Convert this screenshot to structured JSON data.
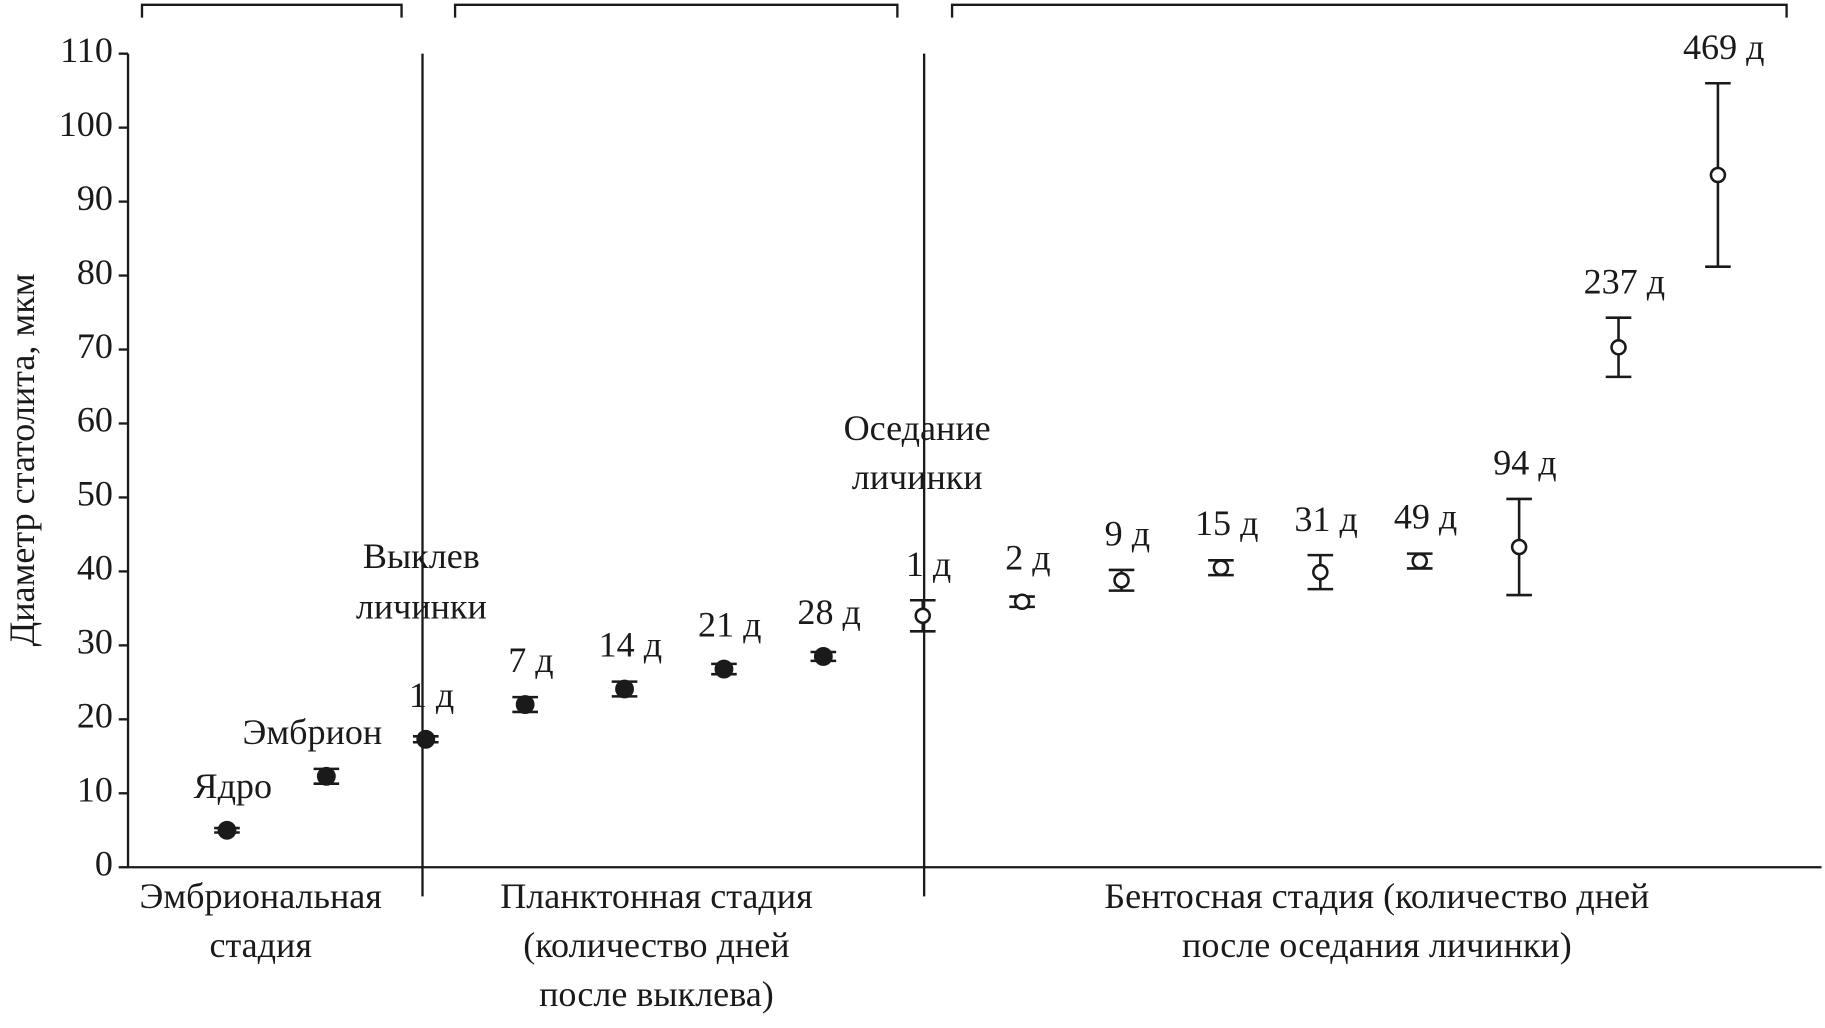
{
  "chart_data": {
    "type": "errorbar",
    "y_label": "Диаметр статолита, мкм",
    "ylim": [
      0,
      110
    ],
    "yticks": [
      0,
      10,
      20,
      30,
      40,
      50,
      60,
      70,
      80,
      90,
      100,
      110
    ],
    "categories": [
      "Ядро",
      "Эмбрион",
      "1 д",
      "7 д",
      "14 д",
      "21 д",
      "28 д",
      "1 д",
      "2 д",
      "9 д",
      "15 д",
      "31 д",
      "49 д",
      "94 д",
      "237 д",
      "469 д"
    ],
    "series": [
      {
        "marker": "filled",
        "color": "#1a1a1a",
        "values": [
          5.0,
          12.3,
          17.3,
          22.0,
          24.1,
          26.8,
          28.5,
          null,
          null,
          null,
          null,
          null,
          null,
          null,
          null,
          null
        ],
        "errors": [
          0.3,
          1.0,
          0.4,
          1.0,
          1.0,
          0.7,
          0.6,
          null,
          null,
          null,
          null,
          null,
          null,
          null,
          null,
          null
        ]
      },
      {
        "marker": "open",
        "color": "#1a1a1a",
        "values": [
          null,
          null,
          null,
          null,
          null,
          null,
          null,
          34.0,
          35.9,
          38.8,
          40.5,
          39.9,
          41.4,
          43.3,
          70.3,
          93.6
        ],
        "errors": [
          null,
          null,
          null,
          null,
          null,
          null,
          null,
          2.1,
          0.7,
          1.4,
          1.0,
          2.3,
          1.0,
          6.5,
          4.0,
          12.4
        ]
      }
    ],
    "annotations": [
      {
        "lines": [
          "Выклев",
          "личинки"
        ]
      },
      {
        "lines": [
          "Оседание",
          "личинки"
        ]
      }
    ],
    "stages": [
      {
        "lines": [
          "Эмбриональная",
          "стадия"
        ]
      },
      {
        "lines": [
          "Планктонная стадия",
          "(количество дней",
          "после выклева)"
        ]
      },
      {
        "lines": [
          "Бентосная стадия (количество дней",
          "после оседания личинки)"
        ]
      }
    ]
  }
}
